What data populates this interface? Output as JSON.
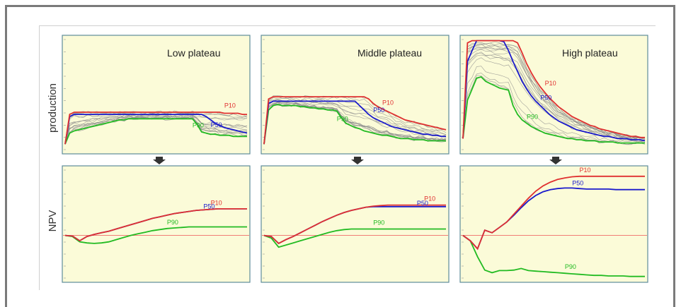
{
  "chart_data": {
    "type": "line",
    "row_labels": [
      "production",
      "NPV"
    ],
    "panel_titles": [
      "Low plateau",
      "Middle plateau",
      "High plateau"
    ],
    "colors": {
      "P10": "#e03030",
      "P50": "#1a1acc",
      "P90": "#22bb22",
      "ensemble": "#8a8a8a",
      "background": "#fbfbd8",
      "zero_line": "#ee5555"
    },
    "panels": [
      {
        "row": "production",
        "title": "Low plateau",
        "series": [
          {
            "name": "P10",
            "values": [
              0.05,
              0.32,
              0.34,
              0.34,
              0.34,
              0.34,
              0.34,
              0.34,
              0.34,
              0.34,
              0.34,
              0.34,
              0.34,
              0.34,
              0.34,
              0.34,
              0.34,
              0.34,
              0.34,
              0.34,
              0.34,
              0.34,
              0.34,
              0.34,
              0.34,
              0.34,
              0.34,
              0.34,
              0.34,
              0.34,
              0.34,
              0.34,
              0.34,
              0.34,
              0.34,
              0.33,
              0.33,
              0.33,
              0.33,
              0.32,
              0.32
            ]
          },
          {
            "name": "P50",
            "values": [
              0.05,
              0.3,
              0.32,
              0.32,
              0.32,
              0.32,
              0.32,
              0.32,
              0.32,
              0.32,
              0.32,
              0.32,
              0.32,
              0.32,
              0.32,
              0.32,
              0.32,
              0.32,
              0.32,
              0.32,
              0.32,
              0.32,
              0.32,
              0.32,
              0.32,
              0.32,
              0.32,
              0.32,
              0.32,
              0.32,
              0.32,
              0.3,
              0.27,
              0.24,
              0.22,
              0.2,
              0.19,
              0.18,
              0.17,
              0.16,
              0.15
            ]
          },
          {
            "name": "P90",
            "values": [
              0.05,
              0.15,
              0.17,
              0.18,
              0.19,
              0.2,
              0.21,
              0.22,
              0.23,
              0.24,
              0.25,
              0.26,
              0.27,
              0.27,
              0.28,
              0.28,
              0.28,
              0.28,
              0.28,
              0.28,
              0.28,
              0.28,
              0.28,
              0.28,
              0.28,
              0.28,
              0.28,
              0.28,
              0.28,
              0.23,
              0.16,
              0.15,
              0.14,
              0.14,
              0.13,
              0.13,
              0.13,
              0.12,
              0.12,
              0.12,
              0.12
            ]
          }
        ]
      },
      {
        "row": "production",
        "title": "Middle plateau",
        "series": [
          {
            "name": "P10",
            "values": [
              0.05,
              0.46,
              0.48,
              0.48,
              0.48,
              0.48,
              0.48,
              0.48,
              0.48,
              0.48,
              0.48,
              0.48,
              0.48,
              0.48,
              0.48,
              0.48,
              0.48,
              0.48,
              0.48,
              0.48,
              0.48,
              0.48,
              0.48,
              0.46,
              0.42,
              0.39,
              0.37,
              0.35,
              0.33,
              0.31,
              0.29,
              0.27,
              0.26,
              0.25,
              0.24,
              0.23,
              0.22,
              0.21,
              0.2,
              0.19,
              0.18
            ]
          },
          {
            "name": "P50",
            "values": [
              0.05,
              0.42,
              0.44,
              0.44,
              0.44,
              0.44,
              0.44,
              0.44,
              0.44,
              0.44,
              0.44,
              0.44,
              0.44,
              0.44,
              0.44,
              0.44,
              0.44,
              0.44,
              0.44,
              0.44,
              0.44,
              0.4,
              0.36,
              0.32,
              0.29,
              0.27,
              0.25,
              0.23,
              0.21,
              0.2,
              0.19,
              0.18,
              0.17,
              0.16,
              0.15,
              0.14,
              0.14,
              0.13,
              0.13,
              0.12,
              0.12
            ]
          },
          {
            "name": "P90",
            "values": [
              0.05,
              0.36,
              0.4,
              0.41,
              0.4,
              0.4,
              0.4,
              0.4,
              0.39,
              0.39,
              0.38,
              0.38,
              0.37,
              0.37,
              0.36,
              0.36,
              0.35,
              0.29,
              0.24,
              0.22,
              0.2,
              0.19,
              0.17,
              0.16,
              0.15,
              0.14,
              0.13,
              0.13,
              0.12,
              0.11,
              0.1,
              0.1,
              0.1,
              0.09,
              0.09,
              0.09,
              0.08,
              0.08,
              0.08,
              0.08,
              0.08
            ]
          }
        ]
      },
      {
        "row": "production",
        "title": "High plateau",
        "series": [
          {
            "name": "P10",
            "values": [
              0.1,
              0.97,
              0.99,
              0.99,
              0.99,
              0.99,
              0.99,
              0.99,
              0.99,
              0.99,
              0.99,
              0.99,
              0.97,
              0.88,
              0.78,
              0.7,
              0.63,
              0.57,
              0.52,
              0.47,
              0.43,
              0.39,
              0.36,
              0.33,
              0.3,
              0.28,
              0.26,
              0.24,
              0.22,
              0.21,
              0.19,
              0.18,
              0.17,
              0.16,
              0.15,
              0.14,
              0.13,
              0.12,
              0.12,
              0.11,
              0.11
            ]
          },
          {
            "name": "P50",
            "values": [
              0.1,
              0.8,
              0.9,
              0.99,
              0.99,
              0.99,
              0.99,
              0.99,
              0.99,
              0.98,
              0.9,
              0.8,
              0.71,
              0.62,
              0.55,
              0.49,
              0.44,
              0.4,
              0.36,
              0.32,
              0.29,
              0.26,
              0.24,
              0.22,
              0.2,
              0.18,
              0.17,
              0.16,
              0.15,
              0.14,
              0.13,
              0.12,
              0.12,
              0.11,
              0.1,
              0.1,
              0.1,
              0.09,
              0.09,
              0.09,
              0.08
            ]
          },
          {
            "name": "P90",
            "values": [
              0.1,
              0.45,
              0.55,
              0.65,
              0.66,
              0.62,
              0.6,
              0.58,
              0.56,
              0.55,
              0.54,
              0.4,
              0.32,
              0.27,
              0.24,
              0.21,
              0.19,
              0.17,
              0.15,
              0.14,
              0.13,
              0.12,
              0.11,
              0.1,
              0.1,
              0.09,
              0.09,
              0.08,
              0.08,
              0.08,
              0.07,
              0.07,
              0.07,
              0.07,
              0.06,
              0.06,
              0.06,
              0.06,
              0.06,
              0.06,
              0.06
            ]
          }
        ]
      },
      {
        "row": "NPV",
        "title": "Low plateau",
        "series": [
          {
            "name": "P10",
            "values": [
              0,
              -0.01,
              -0.1,
              -0.02,
              0.02,
              0.05,
              0.08,
              0.12,
              0.16,
              0.2,
              0.24,
              0.28,
              0.32,
              0.35,
              0.38,
              0.41,
              0.43,
              0.45,
              0.47,
              0.48,
              0.49,
              0.5,
              0.5,
              0.5,
              0.5,
              0.5
            ]
          },
          {
            "name": "P50",
            "values": [
              0,
              -0.01,
              -0.1,
              -0.02,
              0.02,
              0.05,
              0.08,
              0.12,
              0.16,
              0.2,
              0.24,
              0.28,
              0.32,
              0.35,
              0.38,
              0.41,
              0.43,
              0.45,
              0.47,
              0.48,
              0.49,
              0.5,
              0.5,
              0.5,
              0.5,
              0.5
            ]
          },
          {
            "name": "P90",
            "values": [
              0,
              -0.02,
              -0.12,
              -0.14,
              -0.15,
              -0.14,
              -0.12,
              -0.08,
              -0.04,
              0.0,
              0.03,
              0.06,
              0.09,
              0.11,
              0.13,
              0.14,
              0.15,
              0.16,
              0.16,
              0.16,
              0.16,
              0.16,
              0.16,
              0.16,
              0.16,
              0.16
            ]
          }
        ]
      },
      {
        "row": "NPV",
        "title": "Middle plateau",
        "series": [
          {
            "name": "P10",
            "values": [
              0,
              -0.02,
              -0.15,
              -0.08,
              -0.02,
              0.05,
              0.12,
              0.19,
              0.26,
              0.32,
              0.38,
              0.43,
              0.47,
              0.5,
              0.53,
              0.55,
              0.56,
              0.57,
              0.57,
              0.57,
              0.57,
              0.57,
              0.57,
              0.57,
              0.57,
              0.57
            ]
          },
          {
            "name": "P50",
            "values": [
              0,
              -0.02,
              -0.15,
              -0.08,
              -0.02,
              0.05,
              0.12,
              0.19,
              0.26,
              0.32,
              0.38,
              0.43,
              0.47,
              0.5,
              0.53,
              0.54,
              0.54,
              0.54,
              0.54,
              0.54,
              0.54,
              0.54,
              0.54,
              0.54,
              0.54,
              0.54
            ]
          },
          {
            "name": "P90",
            "values": [
              0,
              -0.05,
              -0.22,
              -0.18,
              -0.14,
              -0.1,
              -0.06,
              -0.02,
              0.02,
              0.06,
              0.09,
              0.11,
              0.12,
              0.12,
              0.12,
              0.12,
              0.12,
              0.12,
              0.12,
              0.12,
              0.12,
              0.12,
              0.12,
              0.12,
              0.12,
              0.12
            ]
          }
        ]
      },
      {
        "row": "NPV",
        "title": "High plateau",
        "series": [
          {
            "name": "P10",
            "values": [
              0,
              -0.1,
              -0.25,
              0.1,
              0.05,
              0.15,
              0.25,
              0.4,
              0.55,
              0.7,
              0.83,
              0.93,
              1.0,
              1.05,
              1.08,
              1.1,
              1.11,
              1.11,
              1.11,
              1.11,
              1.11,
              1.11,
              1.11,
              1.11,
              1.11,
              1.11
            ]
          },
          {
            "name": "P50",
            "values": [
              0,
              -0.1,
              -0.25,
              0.1,
              0.05,
              0.15,
              0.25,
              0.38,
              0.52,
              0.65,
              0.75,
              0.82,
              0.86,
              0.88,
              0.89,
              0.89,
              0.88,
              0.87,
              0.87,
              0.87,
              0.87,
              0.86,
              0.86,
              0.86,
              0.86,
              0.86
            ]
          },
          {
            "name": "P90",
            "values": [
              0,
              -0.1,
              -0.4,
              -0.65,
              -0.7,
              -0.66,
              -0.66,
              -0.65,
              -0.62,
              -0.66,
              -0.67,
              -0.68,
              -0.69,
              -0.7,
              -0.71,
              -0.72,
              -0.73,
              -0.74,
              -0.75,
              -0.75,
              -0.76,
              -0.76,
              -0.76,
              -0.77,
              -0.77,
              -0.77
            ]
          }
        ]
      }
    ]
  }
}
